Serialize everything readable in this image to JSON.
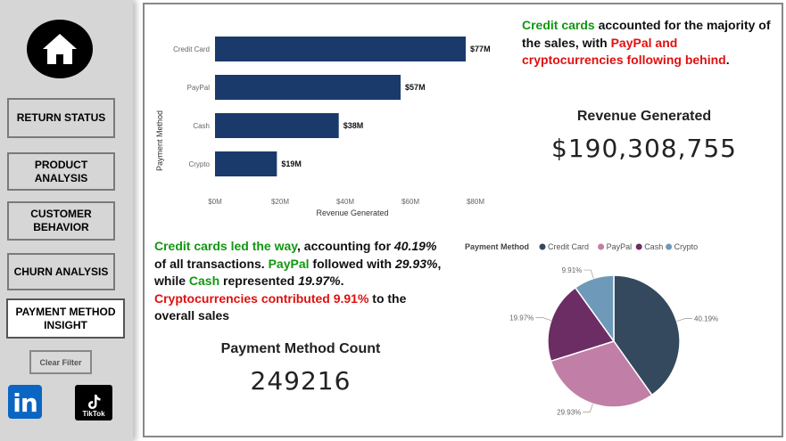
{
  "sidebar": {
    "home_icon": "home-icon",
    "nav": [
      {
        "label": "RETURN STATUS"
      },
      {
        "label": "PRODUCT ANALYSIS"
      },
      {
        "label": "CUSTOMER BEHAVIOR"
      },
      {
        "label": "CHURN ANALYSIS"
      },
      {
        "label": "PAYMENT METHOD INSIGHT",
        "active": true
      }
    ],
    "clear_filter": "Clear Filter",
    "social": {
      "linkedin": "in",
      "tiktok": "TikTok"
    }
  },
  "insights": {
    "top": {
      "p1": "Credit cards",
      "p2": " accounted for the majority of the sales, with ",
      "p3": "PayPal and cryptocurrencies following behind",
      "p4": "."
    },
    "bottom": {
      "p1": "Credit cards led the way",
      "p2": ", accounting for ",
      "p3": "40.19%",
      "p4": " of all transactions. ",
      "p5": "PayPal",
      "p6": " followed with ",
      "p7": "29.93%",
      "p8": ", while ",
      "p9": "Cash",
      "p10": " represented ",
      "p11": "19.97%",
      "p12": ". ",
      "p13": "Cryptocurrencies contributed 9.91%",
      "p14": " to the overall sales"
    }
  },
  "kpis": {
    "revenue": {
      "title": "Revenue Generated",
      "value": "$190,308,755"
    },
    "count": {
      "title": "Payment Method Count",
      "value": "249216"
    }
  },
  "colors": {
    "bar": "#1a3a6b",
    "credit_card": "#34495e",
    "paypal": "#c17ea7",
    "cash": "#6b2d64",
    "crypto": "#6f99b9"
  },
  "chart_data": [
    {
      "type": "bar",
      "orientation": "horizontal",
      "categories": [
        "Credit Card",
        "PayPal",
        "Cash",
        "Crypto"
      ],
      "values": [
        77,
        57,
        38,
        19
      ],
      "data_labels": [
        "$77M",
        "$57M",
        "$38M",
        "$19M"
      ],
      "xticks": [
        "$0M",
        "$20M",
        "$40M",
        "$60M",
        "$80M"
      ],
      "xlim": [
        0,
        80
      ],
      "xlabel": "Revenue Generated",
      "ylabel": "Payment Method"
    },
    {
      "type": "pie",
      "legend_title": "Payment Method",
      "legend_position": "top",
      "categories": [
        "Credit Card",
        "PayPal",
        "Cash",
        "Crypto"
      ],
      "values": [
        40.19,
        29.93,
        19.97,
        9.91
      ],
      "labels": [
        "40.19%",
        "29.93%",
        "19.97%",
        "9.91%"
      ]
    }
  ]
}
